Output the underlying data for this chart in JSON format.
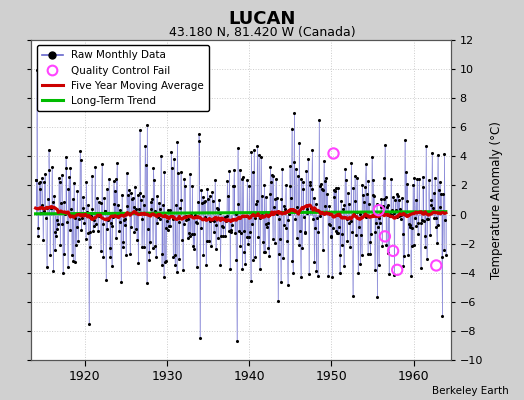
{
  "title": "LUCAN",
  "subtitle": "43.180 N, 81.420 W (Canada)",
  "ylabel": "Temperature Anomaly (°C)",
  "attribution": "Berkeley Earth",
  "ylim": [
    -10,
    12
  ],
  "xlim": [
    1913.5,
    1964.5
  ],
  "xticks": [
    1920,
    1930,
    1940,
    1950,
    1960
  ],
  "yticks": [
    -10,
    -8,
    -6,
    -4,
    -2,
    0,
    2,
    4,
    6,
    8,
    10,
    12
  ],
  "fig_bg_color": "#d0d0d0",
  "plot_bg_color": "#ffffff",
  "grid_color": "#cccccc",
  "line_color": "#6666cc",
  "dot_color": "#000000",
  "ma_color": "#cc0000",
  "trend_color": "#00bb00",
  "qc_color": "#ff44ff",
  "seed": 137,
  "start_year": 1914,
  "end_year": 1964,
  "qc_x": [
    1950.25,
    1955.75,
    1956.5,
    1957.5,
    1958.0,
    1962.75
  ],
  "qc_y": [
    4.2,
    0.3,
    -1.5,
    -2.5,
    -3.8,
    -3.5
  ]
}
